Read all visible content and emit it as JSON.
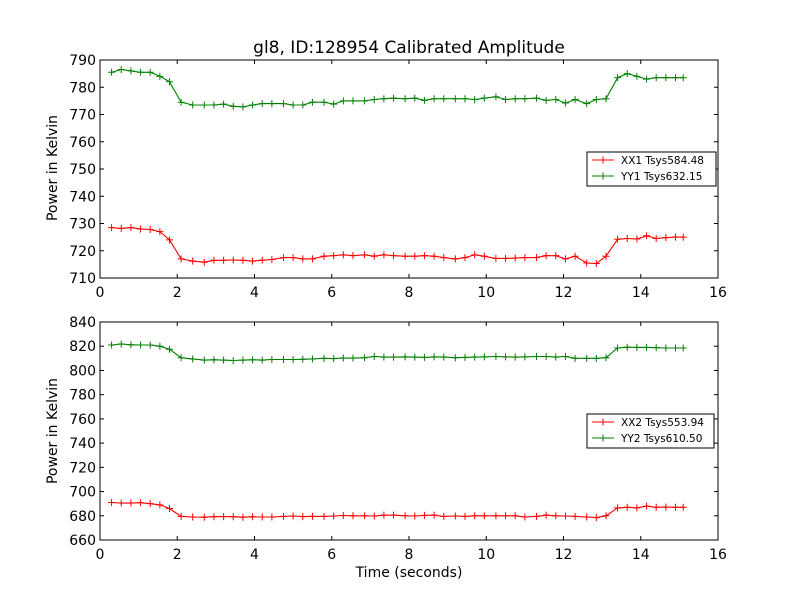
{
  "title": "gl8, ID:128954 Calibrated Amplitude",
  "x_label": "Time (seconds)",
  "chart_data": [
    {
      "type": "line",
      "ylabel": "Power in Kelvin",
      "xlabel": "",
      "xlim": [
        0,
        16
      ],
      "ylim": [
        710,
        790
      ],
      "xticks": [
        0,
        2,
        4,
        6,
        8,
        10,
        12,
        14,
        16
      ],
      "yticks": [
        710,
        720,
        730,
        740,
        750,
        760,
        770,
        780,
        790
      ],
      "legend_position": "right",
      "x": [
        0.3,
        0.55,
        0.8,
        1.05,
        1.3,
        1.55,
        1.8,
        2.1,
        2.4,
        2.7,
        2.95,
        3.2,
        3.45,
        3.7,
        3.95,
        4.2,
        4.45,
        4.75,
        5.0,
        5.25,
        5.5,
        5.8,
        6.05,
        6.3,
        6.55,
        6.85,
        7.1,
        7.35,
        7.6,
        7.9,
        8.15,
        8.4,
        8.65,
        8.9,
        9.2,
        9.45,
        9.7,
        9.95,
        10.25,
        10.5,
        10.75,
        11.0,
        11.3,
        11.55,
        11.8,
        12.05,
        12.3,
        12.6,
        12.85,
        13.1,
        13.4,
        13.65,
        13.9,
        14.15,
        14.4,
        14.65,
        14.9,
        15.1
      ],
      "series": [
        {
          "name": "XX1 Tsys584.48",
          "color": "#ff0000",
          "values": [
            728.5,
            728.2,
            728.5,
            728.0,
            727.8,
            727.0,
            724.0,
            717.0,
            716.2,
            715.8,
            716.5,
            716.5,
            716.6,
            716.5,
            716.2,
            716.5,
            716.8,
            717.5,
            717.5,
            717.0,
            717.0,
            718.0,
            718.2,
            718.5,
            718.2,
            718.5,
            718.0,
            718.5,
            718.2,
            718.0,
            718.0,
            718.2,
            718.0,
            717.5,
            717.0,
            717.5,
            718.5,
            718.0,
            717.2,
            717.2,
            717.3,
            717.5,
            717.5,
            718.2,
            718.2,
            717.0,
            718.0,
            715.5,
            715.3,
            718.0,
            724.2,
            724.5,
            724.3,
            725.5,
            724.5,
            724.8,
            725.0,
            725.0
          ]
        },
        {
          "name": "YY1 Tsys632.15",
          "color": "#008000",
          "values": [
            785.5,
            786.5,
            786.0,
            785.5,
            785.5,
            784.0,
            782.0,
            774.5,
            773.5,
            773.5,
            773.5,
            773.8,
            773.0,
            772.8,
            773.5,
            774.0,
            774.0,
            774.0,
            773.5,
            773.5,
            774.5,
            774.5,
            773.8,
            775.0,
            775.0,
            775.0,
            775.5,
            775.8,
            776.0,
            775.8,
            776.0,
            775.2,
            775.8,
            775.8,
            775.8,
            775.8,
            775.5,
            776.0,
            776.5,
            775.5,
            775.8,
            775.8,
            776.0,
            775.2,
            775.5,
            774.2,
            775.5,
            774.0,
            775.5,
            775.8,
            783.5,
            785.0,
            784.0,
            783.0,
            783.5,
            783.5,
            783.5,
            783.5
          ]
        }
      ]
    },
    {
      "type": "line",
      "ylabel": "Power in Kelvin",
      "xlabel": "Time (seconds)",
      "xlim": [
        0,
        16
      ],
      "ylim": [
        660,
        840
      ],
      "xticks": [
        0,
        2,
        4,
        6,
        8,
        10,
        12,
        14,
        16
      ],
      "yticks": [
        660,
        680,
        700,
        720,
        740,
        760,
        780,
        800,
        820,
        840
      ],
      "legend_position": "right",
      "x": [
        0.3,
        0.55,
        0.8,
        1.05,
        1.3,
        1.55,
        1.8,
        2.1,
        2.4,
        2.7,
        2.95,
        3.2,
        3.45,
        3.7,
        3.95,
        4.2,
        4.45,
        4.75,
        5.0,
        5.25,
        5.5,
        5.8,
        6.05,
        6.3,
        6.55,
        6.85,
        7.1,
        7.35,
        7.6,
        7.9,
        8.15,
        8.4,
        8.65,
        8.9,
        9.2,
        9.45,
        9.7,
        9.95,
        10.25,
        10.5,
        10.75,
        11.0,
        11.3,
        11.55,
        11.8,
        12.05,
        12.3,
        12.6,
        12.85,
        13.1,
        13.4,
        13.65,
        13.9,
        14.15,
        14.4,
        14.65,
        14.9,
        15.1
      ],
      "series": [
        {
          "name": "XX2 Tsys553.94",
          "color": "#ff0000",
          "values": [
            691.0,
            690.5,
            690.5,
            690.8,
            690.0,
            689.0,
            686.0,
            679.5,
            679.0,
            678.8,
            679.2,
            679.3,
            679.2,
            678.8,
            679.2,
            679.0,
            679.0,
            679.5,
            679.8,
            679.3,
            679.5,
            679.5,
            679.8,
            680.2,
            680.0,
            680.0,
            679.8,
            680.5,
            680.5,
            680.0,
            679.8,
            680.3,
            680.5,
            679.5,
            679.8,
            679.5,
            680.0,
            680.0,
            680.0,
            680.0,
            680.0,
            679.0,
            679.5,
            680.5,
            680.0,
            679.8,
            679.5,
            679.0,
            678.5,
            680.0,
            686.5,
            687.0,
            686.5,
            688.0,
            687.0,
            687.2,
            687.0,
            687.0
          ]
        },
        {
          "name": "YY2 Tsys610.50",
          "color": "#008000",
          "values": [
            821.0,
            821.8,
            821.2,
            821.0,
            821.0,
            820.0,
            817.5,
            810.5,
            809.5,
            808.5,
            808.8,
            808.5,
            808.2,
            808.5,
            808.8,
            808.5,
            809.0,
            809.0,
            809.0,
            809.2,
            809.5,
            810.0,
            809.8,
            810.2,
            810.2,
            810.5,
            811.5,
            811.0,
            811.0,
            811.2,
            811.0,
            810.8,
            811.2,
            811.0,
            810.5,
            810.8,
            811.0,
            811.2,
            811.5,
            811.2,
            811.0,
            811.2,
            811.5,
            811.5,
            811.0,
            811.5,
            810.0,
            810.0,
            810.0,
            810.5,
            818.5,
            819.2,
            819.0,
            819.0,
            818.8,
            818.5,
            818.5,
            818.5
          ]
        }
      ]
    }
  ]
}
